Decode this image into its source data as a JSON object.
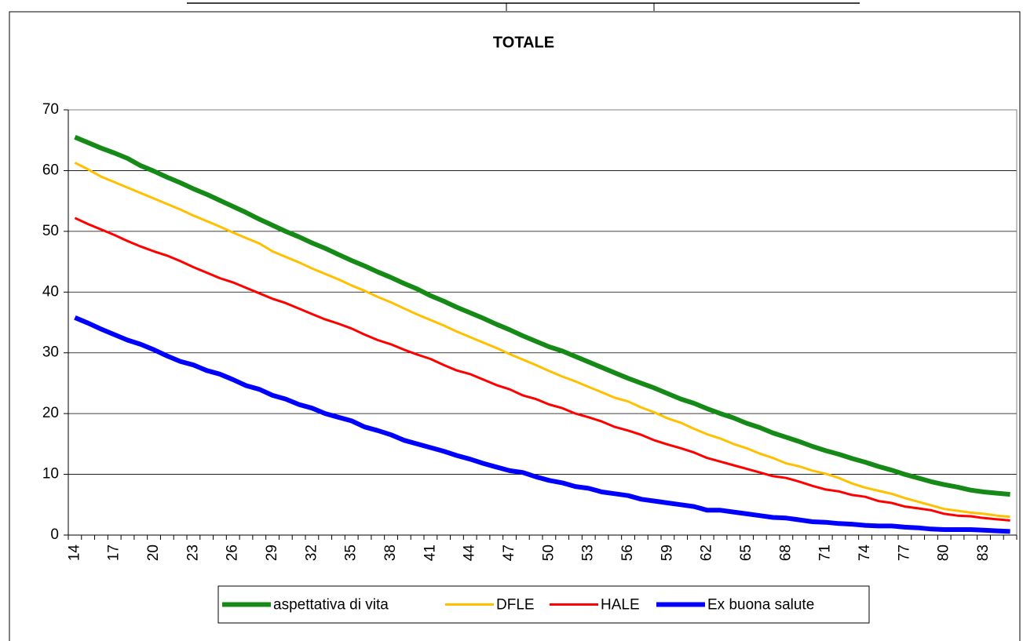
{
  "chart_data": {
    "type": "line",
    "title": "TOTALE",
    "categories": [
      14,
      null,
      null,
      17,
      null,
      null,
      20,
      null,
      null,
      23,
      null,
      null,
      26,
      null,
      null,
      29,
      null,
      null,
      32,
      null,
      null,
      35,
      null,
      null,
      38,
      null,
      null,
      41,
      null,
      null,
      44,
      null,
      null,
      47,
      null,
      null,
      50,
      null,
      null,
      53,
      null,
      null,
      56,
      null,
      null,
      59,
      null,
      null,
      62,
      null,
      null,
      65,
      null,
      null,
      68,
      null,
      null,
      71,
      null,
      null,
      74,
      null,
      null,
      77,
      null,
      null,
      80,
      null,
      null,
      83,
      null,
      null
    ],
    "series": [
      {
        "name": "aspettativa di vita",
        "color": "#168a16",
        "values": [
          65.5,
          64.6,
          63.7,
          62.9,
          62.0,
          60.8,
          59.9,
          58.9,
          58.0,
          57.0,
          56.1,
          55.1,
          54.1,
          53.1,
          52.0,
          51.0,
          50.0,
          49.1,
          48.1,
          47.2,
          46.2,
          45.2,
          44.3,
          43.3,
          42.4,
          41.4,
          40.5,
          39.4,
          38.5,
          37.5,
          36.6,
          35.7,
          34.7,
          33.8,
          32.8,
          31.9,
          31.0,
          30.3,
          29.4,
          28.5,
          27.6,
          26.7,
          25.8,
          25.0,
          24.2,
          23.3,
          22.4,
          21.7,
          20.8,
          20.0,
          19.3,
          18.4,
          17.7,
          16.8,
          16.1,
          15.4,
          14.6,
          13.9,
          13.3,
          12.6,
          12.0,
          11.3,
          10.7,
          10.0,
          9.4,
          8.8,
          8.3,
          7.9,
          7.4,
          7.1,
          6.9,
          6.7
        ]
      },
      {
        "name": "DFLE",
        "color": "#ffc000",
        "values": [
          61.3,
          60.2,
          59.0,
          58.1,
          57.2,
          56.3,
          55.4,
          54.5,
          53.6,
          52.6,
          51.7,
          50.8,
          49.8,
          48.9,
          48.0,
          46.7,
          45.8,
          44.9,
          43.9,
          43.0,
          42.1,
          41.1,
          40.2,
          39.2,
          38.3,
          37.3,
          36.3,
          35.4,
          34.5,
          33.5,
          32.6,
          31.7,
          30.8,
          29.8,
          28.9,
          28.0,
          27.0,
          26.1,
          25.3,
          24.4,
          23.5,
          22.6,
          22.0,
          21.0,
          20.2,
          19.2,
          18.5,
          17.5,
          16.6,
          15.9,
          15.0,
          14.3,
          13.4,
          12.7,
          11.8,
          11.3,
          10.6,
          10.1,
          9.4,
          8.5,
          7.8,
          7.3,
          6.8,
          6.1,
          5.5,
          4.9,
          4.3,
          4.0,
          3.7,
          3.5,
          3.2,
          3.0
        ]
      },
      {
        "name": "HALE",
        "color": "#ff0000",
        "values": [
          52.2,
          51.2,
          50.3,
          49.4,
          48.4,
          47.5,
          46.7,
          46.0,
          45.1,
          44.1,
          43.2,
          42.3,
          41.6,
          40.7,
          39.8,
          38.9,
          38.2,
          37.3,
          36.4,
          35.5,
          34.8,
          34.0,
          33.0,
          32.1,
          31.4,
          30.5,
          29.7,
          29.0,
          28.0,
          27.1,
          26.5,
          25.6,
          24.7,
          24.0,
          23.0,
          22.4,
          21.5,
          20.9,
          20.0,
          19.4,
          18.7,
          17.8,
          17.2,
          16.5,
          15.6,
          14.9,
          14.3,
          13.6,
          12.7,
          12.1,
          11.5,
          10.9,
          10.3,
          9.7,
          9.4,
          8.8,
          8.1,
          7.5,
          7.2,
          6.6,
          6.3,
          5.6,
          5.3,
          4.7,
          4.4,
          4.1,
          3.5,
          3.2,
          3.1,
          2.8,
          2.6,
          2.4
        ]
      },
      {
        "name": "Ex buona salute",
        "color": "#0000ff",
        "values": [
          35.8,
          34.9,
          33.9,
          33.0,
          32.1,
          31.4,
          30.5,
          29.5,
          28.6,
          28.0,
          27.1,
          26.5,
          25.6,
          24.6,
          24.0,
          23.0,
          22.4,
          21.5,
          20.9,
          20.0,
          19.4,
          18.8,
          17.8,
          17.2,
          16.5,
          15.6,
          15.0,
          14.4,
          13.8,
          13.1,
          12.5,
          11.8,
          11.2,
          10.6,
          10.3,
          9.6,
          9.0,
          8.6,
          8.0,
          7.7,
          7.1,
          6.8,
          6.5,
          5.9,
          5.6,
          5.3,
          5.0,
          4.7,
          4.1,
          4.1,
          3.8,
          3.5,
          3.2,
          2.9,
          2.8,
          2.5,
          2.2,
          2.1,
          1.9,
          1.8,
          1.6,
          1.5,
          1.5,
          1.3,
          1.2,
          1.0,
          0.9,
          0.9,
          0.9,
          0.8,
          0.7,
          0.6
        ]
      }
    ],
    "ylim": [
      0,
      70
    ],
    "yticks": [
      0,
      10,
      20,
      30,
      40,
      50,
      60,
      70
    ],
    "grid": true,
    "legend": "bottom"
  }
}
